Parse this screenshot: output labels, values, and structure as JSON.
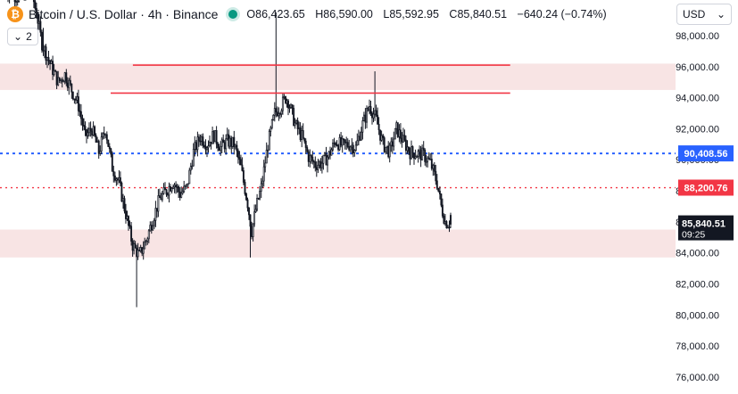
{
  "legend": {
    "coin_glyph": "₿",
    "title": "Bitcoin / U.S. Dollar · 4h · Binance",
    "open": "O86,423.65",
    "high": "H86,590.00",
    "low": "L85,592.95",
    "close": "C85,840.51",
    "change": "−640.24 (−0.74%)",
    "indicator_count": "2"
  },
  "currency_selector": {
    "label": "USD"
  },
  "colors": {
    "up": "#089981",
    "down": "#f23645",
    "candle": "#131722",
    "resistance_line": "#f23645",
    "zone_fill": "#f8e4e4",
    "blue_line": "#2962ff",
    "red_line": "#f23645",
    "price_tag": "#131722"
  },
  "chart_data": {
    "type": "candlestick",
    "ylim": [
      75000,
      100000
    ],
    "y_ticks": [
      "76,000.00",
      "78,000.00",
      "80,000.00",
      "82,000.00",
      "84,000.00",
      "86,000.00",
      "88,000.00",
      "90,000.00",
      "92,000.00",
      "94,000.00",
      "96,000.00",
      "98,000.00"
    ],
    "zones": [
      {
        "from": 94500,
        "to": 96200
      },
      {
        "from": 83700,
        "to": 85500
      }
    ],
    "resistance_lines": [
      {
        "value": 96100,
        "x_start": 0.18,
        "x_end": 0.99
      },
      {
        "value": 94300,
        "x_start": 0.15,
        "x_end": 0.99
      }
    ],
    "horizontal_lines": [
      {
        "value": 90408.56,
        "label": "90,408.56",
        "style": "dotted-blue"
      },
      {
        "value": 88200.76,
        "label": "88,200.76",
        "style": "dotted-red"
      }
    ],
    "current_price": {
      "value": 85840.51,
      "label": "85,840.51",
      "countdown": "09:25"
    },
    "anchors": [
      [
        0,
        101000
      ],
      [
        10,
        100500
      ],
      [
        20,
        101000
      ],
      [
        25,
        99000
      ],
      [
        28,
        97500
      ],
      [
        35,
        96000
      ],
      [
        40,
        95000
      ],
      [
        45,
        95500
      ],
      [
        50,
        94500
      ],
      [
        55,
        93500
      ],
      [
        60,
        91500
      ],
      [
        65,
        92000
      ],
      [
        70,
        90500
      ],
      [
        75,
        92000
      ],
      [
        80,
        89500
      ],
      [
        85,
        88500
      ],
      [
        90,
        86500
      ],
      [
        95,
        84500
      ],
      [
        100,
        83800
      ],
      [
        105,
        84800
      ],
      [
        110,
        86200
      ],
      [
        115,
        87500
      ],
      [
        120,
        88000
      ],
      [
        125,
        88600
      ],
      [
        130,
        87800
      ],
      [
        135,
        88200
      ],
      [
        140,
        90500
      ],
      [
        145,
        91500
      ],
      [
        150,
        91000
      ],
      [
        155,
        91600
      ],
      [
        160,
        90800
      ],
      [
        165,
        91200
      ],
      [
        170,
        91000
      ],
      [
        175,
        89500
      ],
      [
        180,
        87200
      ],
      [
        183,
        85400
      ],
      [
        186,
        86800
      ],
      [
        190,
        88200
      ],
      [
        195,
        91000
      ],
      [
        200,
        93000
      ],
      [
        205,
        93500
      ],
      [
        208,
        94000
      ],
      [
        210,
        93800
      ],
      [
        215,
        92300
      ],
      [
        220,
        91500
      ],
      [
        225,
        90200
      ],
      [
        230,
        89700
      ],
      [
        235,
        89800
      ],
      [
        240,
        90300
      ],
      [
        245,
        91200
      ],
      [
        250,
        90900
      ],
      [
        255,
        91000
      ],
      [
        260,
        90800
      ],
      [
        265,
        92300
      ],
      [
        270,
        93500
      ],
      [
        275,
        92600
      ],
      [
        280,
        91000
      ],
      [
        285,
        90500
      ],
      [
        290,
        92000
      ],
      [
        295,
        91200
      ],
      [
        300,
        90500
      ],
      [
        305,
        90400
      ],
      [
        310,
        90300
      ],
      [
        315,
        89800
      ],
      [
        320,
        88500
      ],
      [
        323,
        87000
      ],
      [
        326,
        86000
      ],
      [
        329,
        85900
      ]
    ],
    "spikes": [
      {
        "index": 0,
        "high": 104000
      },
      {
        "index": 200,
        "high": 99500
      },
      {
        "index": 273,
        "high": 95700
      },
      {
        "index": 28,
        "high": 98500
      },
      {
        "index": 97,
        "low": 80500
      },
      {
        "index": 181,
        "low": 83700
      }
    ],
    "last_candle": {
      "open": 86423.65,
      "high": 86590.0,
      "low": 85592.95,
      "close": 85840.51
    }
  }
}
